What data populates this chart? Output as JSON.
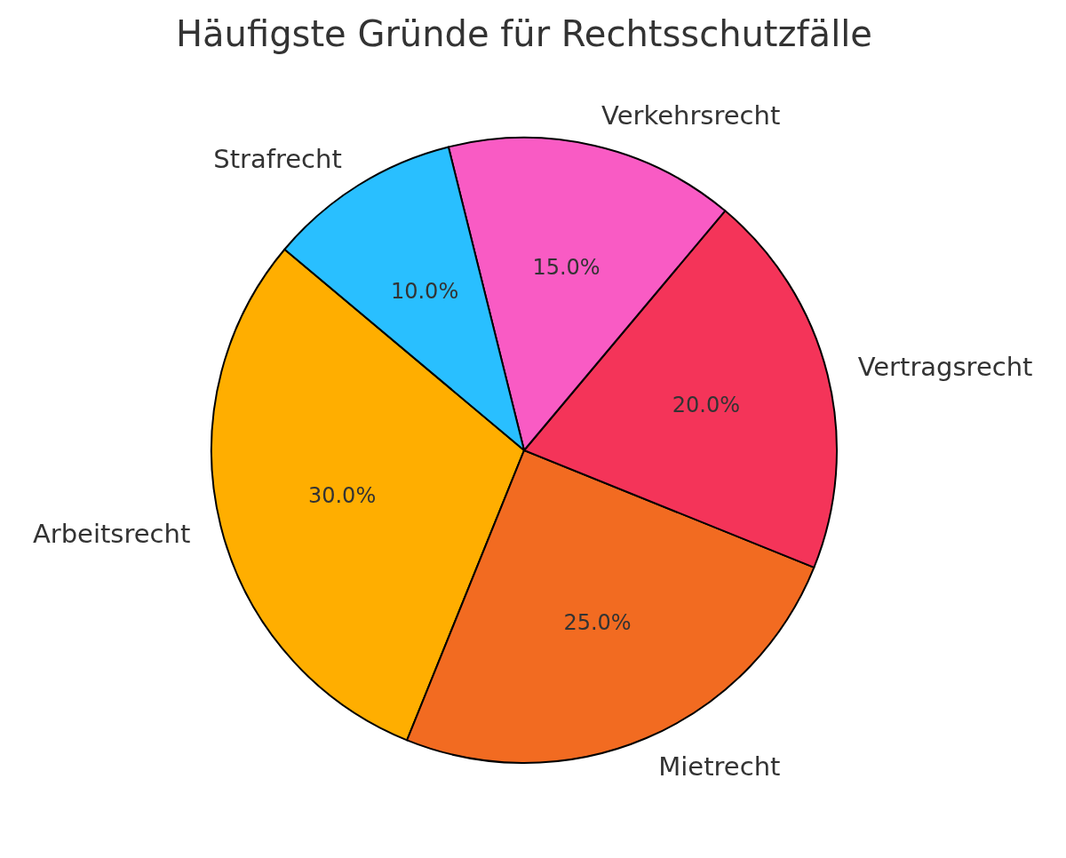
{
  "chart_data": {
    "type": "pie",
    "title": "Häufigste Gründe für Rechtsschutzfälle",
    "categories": [
      "Arbeitsrecht",
      "Mietrecht",
      "Vertragsrecht",
      "Verkehrsrecht",
      "Strafrecht"
    ],
    "values": [
      30,
      25,
      20,
      15,
      10
    ],
    "colors": [
      "#ffae00",
      "#f26b21",
      "#f43459",
      "#f95bc4",
      "#29bfff"
    ],
    "value_labels": [
      "30.0%",
      "25.0%",
      "20.0%",
      "15.0%",
      "10.0%"
    ]
  }
}
